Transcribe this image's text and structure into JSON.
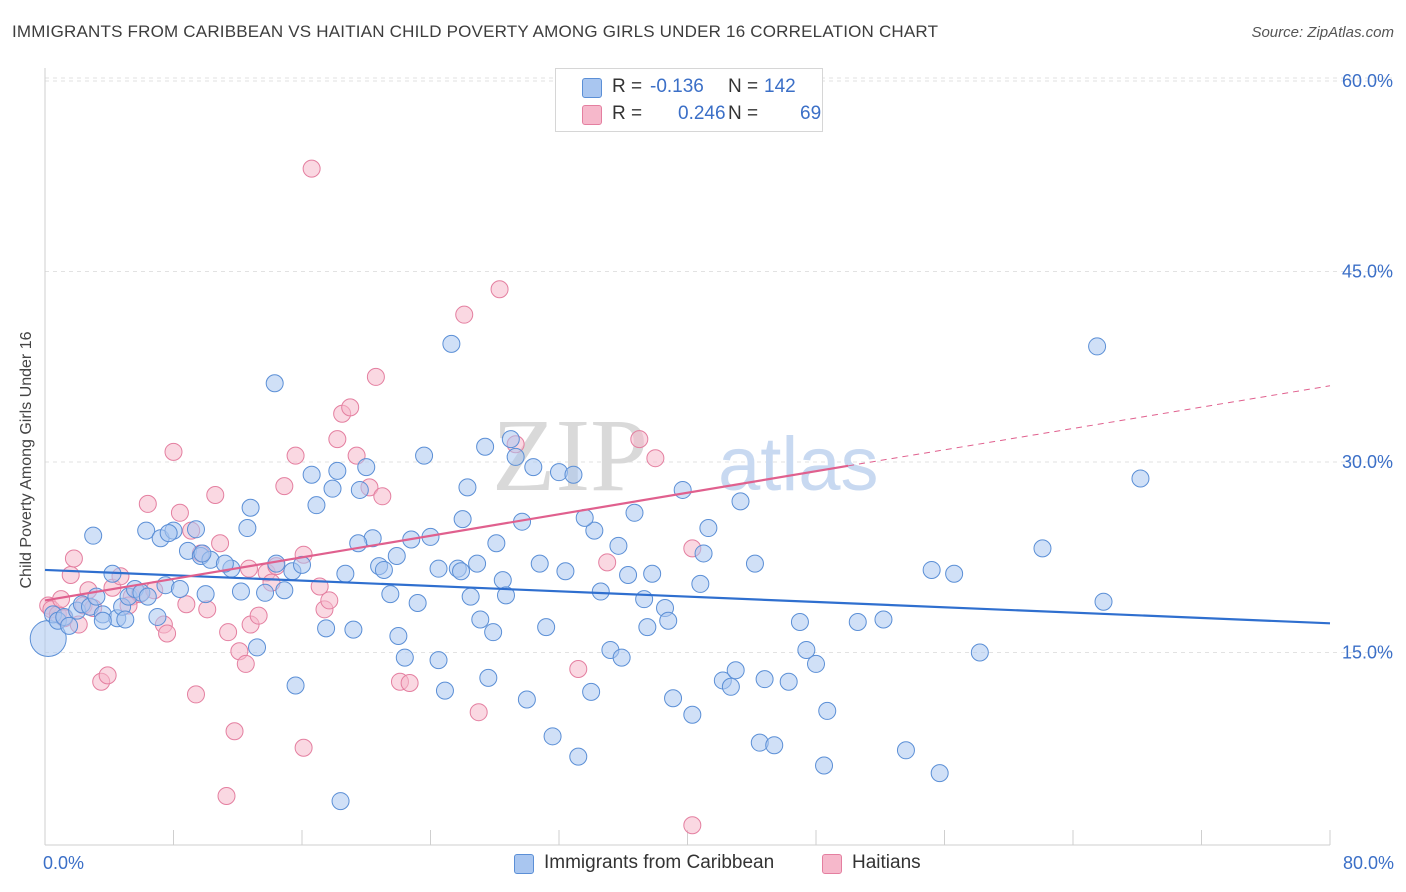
{
  "title": "IMMIGRANTS FROM CARIBBEAN VS HAITIAN CHILD POVERTY AMONG GIRLS UNDER 16 CORRELATION CHART",
  "source": "Source: ZipAtlas.com",
  "watermark": {
    "zip": "ZIP",
    "atlas": "atlas"
  },
  "legend": {
    "rows": [
      {
        "r_label": "R =",
        "r_value": "-0.136",
        "n_label": "N =",
        "n_value": "142",
        "color": "#a9c6f0"
      },
      {
        "r_label": "R =",
        "r_value": "0.246",
        "n_label": "N =",
        "n_value": "69",
        "color": "#f6b8cb"
      }
    ]
  },
  "bottom_legend": [
    "Immigrants from Caribbean",
    "Haitians"
  ],
  "chart_data": {
    "type": "scatter",
    "title": "IMMIGRANTS FROM CARIBBEAN VS HAITIAN CHILD POVERTY AMONG GIRLS UNDER 16 CORRELATION CHART",
    "xlabel": "",
    "ylabel": "Child Poverty Among Girls Under 16",
    "xlim": [
      0,
      80
    ],
    "ylim": [
      0,
      62
    ],
    "x_tick_labels": [
      "0.0%",
      "80.0%"
    ],
    "y_ticks": [
      15,
      30,
      45,
      60
    ],
    "y_tick_labels": [
      "15.0%",
      "30.0%",
      "45.0%",
      "60.0%"
    ],
    "grid": true,
    "legend_placement": "top-center",
    "colors": {
      "caribbean_fill": "#a9c6f0",
      "caribbean_stroke": "#5b8fd6",
      "caribbean_line": "#2f6fcf",
      "haitian_fill": "#f6b8cb",
      "haitian_stroke": "#e47fa0",
      "haitian_line": "#e0608e"
    },
    "series": [
      {
        "name": "Immigrants from Caribbean",
        "trend": {
          "x": [
            0,
            80
          ],
          "y": [
            21.5,
            17.3
          ]
        },
        "points": [
          [
            0.2,
            16.1
          ],
          [
            0.5,
            18
          ],
          [
            0.8,
            17.5
          ],
          [
            1.2,
            17.8
          ],
          [
            1.5,
            17.1
          ],
          [
            2.0,
            18.3
          ],
          [
            2.3,
            18.8
          ],
          [
            2.8,
            18.6
          ],
          [
            3.2,
            19.4
          ],
          [
            3.6,
            18.0
          ],
          [
            3.0,
            24.2
          ],
          [
            4.2,
            21.2
          ],
          [
            4.5,
            17.7
          ],
          [
            4.8,
            18.6
          ],
          [
            5.2,
            19.4
          ],
          [
            5.6,
            20.0
          ],
          [
            6.0,
            19.7
          ],
          [
            6.4,
            19.4
          ],
          [
            7.0,
            17.8
          ],
          [
            7.5,
            20.3
          ],
          [
            6.3,
            24.6
          ],
          [
            7.2,
            24.0
          ],
          [
            8.0,
            24.6
          ],
          [
            8.4,
            20.0
          ],
          [
            8.9,
            23.0
          ],
          [
            9.4,
            24.7
          ],
          [
            9.7,
            22.6
          ],
          [
            10.3,
            22.3
          ],
          [
            11.6,
            21.6
          ],
          [
            11.2,
            22.0
          ],
          [
            10.0,
            19.6
          ],
          [
            12.2,
            19.8
          ],
          [
            12.6,
            24.8
          ],
          [
            12.8,
            26.4
          ],
          [
            13.7,
            19.7
          ],
          [
            14.4,
            22.0
          ],
          [
            14.9,
            19.9
          ],
          [
            15.4,
            21.4
          ],
          [
            16.0,
            21.9
          ],
          [
            16.6,
            29.0
          ],
          [
            16.9,
            26.6
          ],
          [
            17.5,
            16.9
          ],
          [
            17.9,
            27.9
          ],
          [
            18.2,
            29.3
          ],
          [
            18.7,
            21.2
          ],
          [
            19.2,
            16.8
          ],
          [
            19.6,
            27.8
          ],
          [
            20.0,
            29.6
          ],
          [
            20.4,
            24.0
          ],
          [
            20.8,
            21.8
          ],
          [
            21.1,
            21.5
          ],
          [
            21.5,
            19.6
          ],
          [
            21.9,
            22.6
          ],
          [
            22.4,
            14.6
          ],
          [
            22.8,
            23.9
          ],
          [
            23.2,
            18.9
          ],
          [
            23.6,
            30.5
          ],
          [
            24.0,
            24.1
          ],
          [
            24.5,
            14.4
          ],
          [
            24.9,
            12.0
          ],
          [
            25.3,
            39.3
          ],
          [
            25.7,
            21.6
          ],
          [
            26.0,
            25.5
          ],
          [
            26.3,
            28.0
          ],
          [
            26.9,
            22.0
          ],
          [
            27.1,
            17.6
          ],
          [
            27.4,
            31.2
          ],
          [
            27.9,
            16.6
          ],
          [
            28.1,
            23.6
          ],
          [
            28.5,
            20.7
          ],
          [
            28.7,
            19.5
          ],
          [
            29.0,
            31.8
          ],
          [
            29.3,
            30.4
          ],
          [
            29.7,
            25.3
          ],
          [
            30.0,
            11.3
          ],
          [
            30.4,
            29.6
          ],
          [
            30.8,
            22.0
          ],
          [
            31.2,
            17.0
          ],
          [
            32.0,
            29.2
          ],
          [
            32.4,
            21.4
          ],
          [
            32.9,
            29.0
          ],
          [
            33.2,
            6.8
          ],
          [
            34.0,
            11.9
          ],
          [
            34.2,
            24.6
          ],
          [
            34.6,
            19.8
          ],
          [
            35.2,
            15.2
          ],
          [
            35.7,
            23.4
          ],
          [
            35.9,
            14.6
          ],
          [
            36.7,
            26.0
          ],
          [
            37.3,
            19.2
          ],
          [
            37.5,
            17.0
          ],
          [
            37.8,
            21.2
          ],
          [
            38.6,
            18.5
          ],
          [
            38.8,
            17.5
          ],
          [
            39.1,
            11.4
          ],
          [
            39.7,
            27.8
          ],
          [
            40.3,
            10.1
          ],
          [
            41.0,
            22.8
          ],
          [
            41.3,
            24.8
          ],
          [
            42.2,
            12.8
          ],
          [
            42.7,
            12.3
          ],
          [
            43.0,
            13.6
          ],
          [
            43.3,
            26.9
          ],
          [
            44.2,
            22.0
          ],
          [
            44.5,
            7.9
          ],
          [
            45.4,
            7.7
          ],
          [
            46.3,
            12.7
          ],
          [
            47.0,
            17.4
          ],
          [
            47.4,
            15.2
          ],
          [
            48.0,
            14.1
          ],
          [
            48.5,
            6.1
          ],
          [
            48.7,
            10.4
          ],
          [
            50.6,
            17.4
          ],
          [
            52.2,
            17.6
          ],
          [
            53.6,
            7.3
          ],
          [
            55.2,
            21.5
          ],
          [
            55.7,
            5.5
          ],
          [
            56.6,
            21.2
          ],
          [
            58.2,
            15.0
          ],
          [
            62.1,
            23.2
          ],
          [
            65.5,
            39.1
          ],
          [
            65.9,
            19.0
          ],
          [
            68.2,
            28.7
          ],
          [
            14.3,
            36.2
          ],
          [
            9.8,
            22.8
          ],
          [
            3.6,
            17.5
          ],
          [
            5.0,
            17.6
          ],
          [
            7.7,
            24.4
          ],
          [
            13.2,
            15.4
          ],
          [
            15.6,
            12.4
          ],
          [
            18.4,
            3.3
          ],
          [
            31.6,
            8.4
          ],
          [
            36.3,
            21.1
          ],
          [
            22.0,
            16.3
          ],
          [
            27.6,
            13.0
          ],
          [
            33.6,
            25.6
          ],
          [
            19.5,
            23.6
          ],
          [
            26.5,
            19.4
          ],
          [
            24.5,
            21.6
          ],
          [
            40.8,
            20.4
          ],
          [
            44.8,
            12.9
          ],
          [
            25.9,
            21.4
          ]
        ]
      },
      {
        "name": "Haitians",
        "trend": {
          "x": [
            0,
            50
          ],
          "y": [
            19.1,
            29.7
          ],
          "dashed_to": {
            "x": 80,
            "y": 36.0
          }
        },
        "points": [
          [
            0.2,
            18.7
          ],
          [
            0.4,
            18.4
          ],
          [
            0.8,
            18.0
          ],
          [
            1.2,
            17.7
          ],
          [
            1.6,
            21.1
          ],
          [
            1.8,
            22.4
          ],
          [
            2.1,
            17.2
          ],
          [
            2.4,
            18.7
          ],
          [
            3.0,
            18.5
          ],
          [
            3.5,
            12.7
          ],
          [
            3.9,
            13.2
          ],
          [
            4.2,
            20.1
          ],
          [
            4.7,
            21.0
          ],
          [
            5.4,
            19.4
          ],
          [
            5.9,
            19.6
          ],
          [
            6.4,
            26.7
          ],
          [
            6.8,
            19.9
          ],
          [
            7.4,
            17.2
          ],
          [
            7.6,
            16.5
          ],
          [
            8.0,
            30.8
          ],
          [
            8.4,
            26.0
          ],
          [
            8.8,
            18.8
          ],
          [
            9.4,
            11.7
          ],
          [
            9.7,
            22.8
          ],
          [
            10.1,
            18.4
          ],
          [
            10.6,
            27.4
          ],
          [
            10.9,
            23.6
          ],
          [
            11.4,
            16.6
          ],
          [
            11.8,
            8.8
          ],
          [
            11.3,
            3.7
          ],
          [
            12.1,
            15.1
          ],
          [
            12.5,
            14.1
          ],
          [
            12.8,
            17.2
          ],
          [
            13.3,
            17.9
          ],
          [
            13.8,
            21.3
          ],
          [
            14.4,
            21.8
          ],
          [
            14.9,
            28.1
          ],
          [
            15.6,
            30.5
          ],
          [
            16.1,
            22.7
          ],
          [
            16.1,
            7.5
          ],
          [
            16.6,
            53.1
          ],
          [
            17.1,
            20.2
          ],
          [
            17.4,
            18.4
          ],
          [
            17.7,
            19.1
          ],
          [
            18.2,
            31.8
          ],
          [
            18.5,
            33.8
          ],
          [
            19.0,
            34.3
          ],
          [
            19.4,
            30.5
          ],
          [
            20.2,
            28.0
          ],
          [
            20.6,
            36.7
          ],
          [
            21.0,
            27.3
          ],
          [
            22.1,
            12.7
          ],
          [
            22.7,
            12.6
          ],
          [
            26.1,
            41.6
          ],
          [
            27.0,
            10.3
          ],
          [
            28.3,
            43.6
          ],
          [
            29.3,
            31.4
          ],
          [
            33.2,
            13.7
          ],
          [
            35.0,
            22.1
          ],
          [
            37.0,
            31.8
          ],
          [
            38.0,
            30.3
          ],
          [
            40.3,
            1.4
          ],
          [
            40.3,
            23.2
          ],
          [
            1.0,
            19.2
          ],
          [
            2.7,
            19.9
          ],
          [
            5.2,
            18.7
          ],
          [
            9.1,
            24.6
          ],
          [
            12.7,
            21.6
          ],
          [
            14.1,
            20.5
          ]
        ]
      }
    ]
  }
}
